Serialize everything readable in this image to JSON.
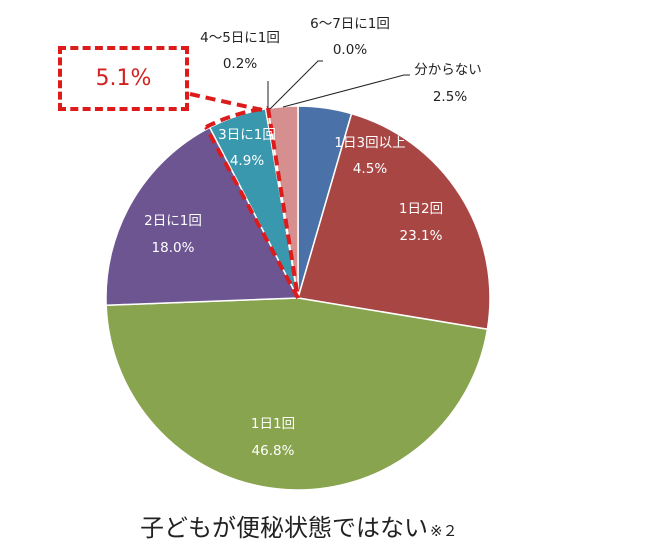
{
  "chart_data": {
    "type": "pie",
    "title": "子どもが便秘状態ではない",
    "title_note": "※２",
    "categories": [
      "1日3回以上",
      "1日2回",
      "1日1回",
      "2日に1回",
      "3日に1回",
      "4〜5日に1回",
      "6〜7日に1回",
      "分からない"
    ],
    "values": [
      4.5,
      23.1,
      46.8,
      18.0,
      4.9,
      0.2,
      0.0,
      2.5
    ],
    "labels": [
      "4.5%",
      "23.1%",
      "46.8%",
      "18.0%",
      "4.9%",
      "0.2%",
      "0.0%",
      "2.5%"
    ],
    "colors": [
      "#4a72a8",
      "#a84644",
      "#88a44e",
      "#6d5592",
      "#3a98ae",
      "#e98b35",
      "#a0a0c8",
      "#d68f8f"
    ],
    "start_angle_deg": 0,
    "direction": "clockwise",
    "annotation": {
      "text": "5.1%",
      "highlighted_categories": [
        "3日に1回",
        "4〜5日に1回",
        "6〜7日に1回"
      ],
      "style": "red dashed outline"
    },
    "legend": "none (data labels on slices)"
  },
  "labels": {
    "s0_name": "1日3回以上",
    "s0_pct": "4.5%",
    "s1_name": "1日2回",
    "s1_pct": "23.1%",
    "s2_name": "1日1回",
    "s2_pct": "46.8%",
    "s3_name": "2日に1回",
    "s3_pct": "18.0%",
    "s4_name": "3日に1回",
    "s4_pct": "4.9%",
    "s5_name": "4〜5日に1回",
    "s5_pct": "0.2%",
    "s6_name": "6〜7日に1回",
    "s6_pct": "0.0%",
    "s7_name": "分からない",
    "s7_pct": "2.5%",
    "callout": "5.1%",
    "title": "子どもが便秘状態ではない",
    "title_note": "※２"
  }
}
